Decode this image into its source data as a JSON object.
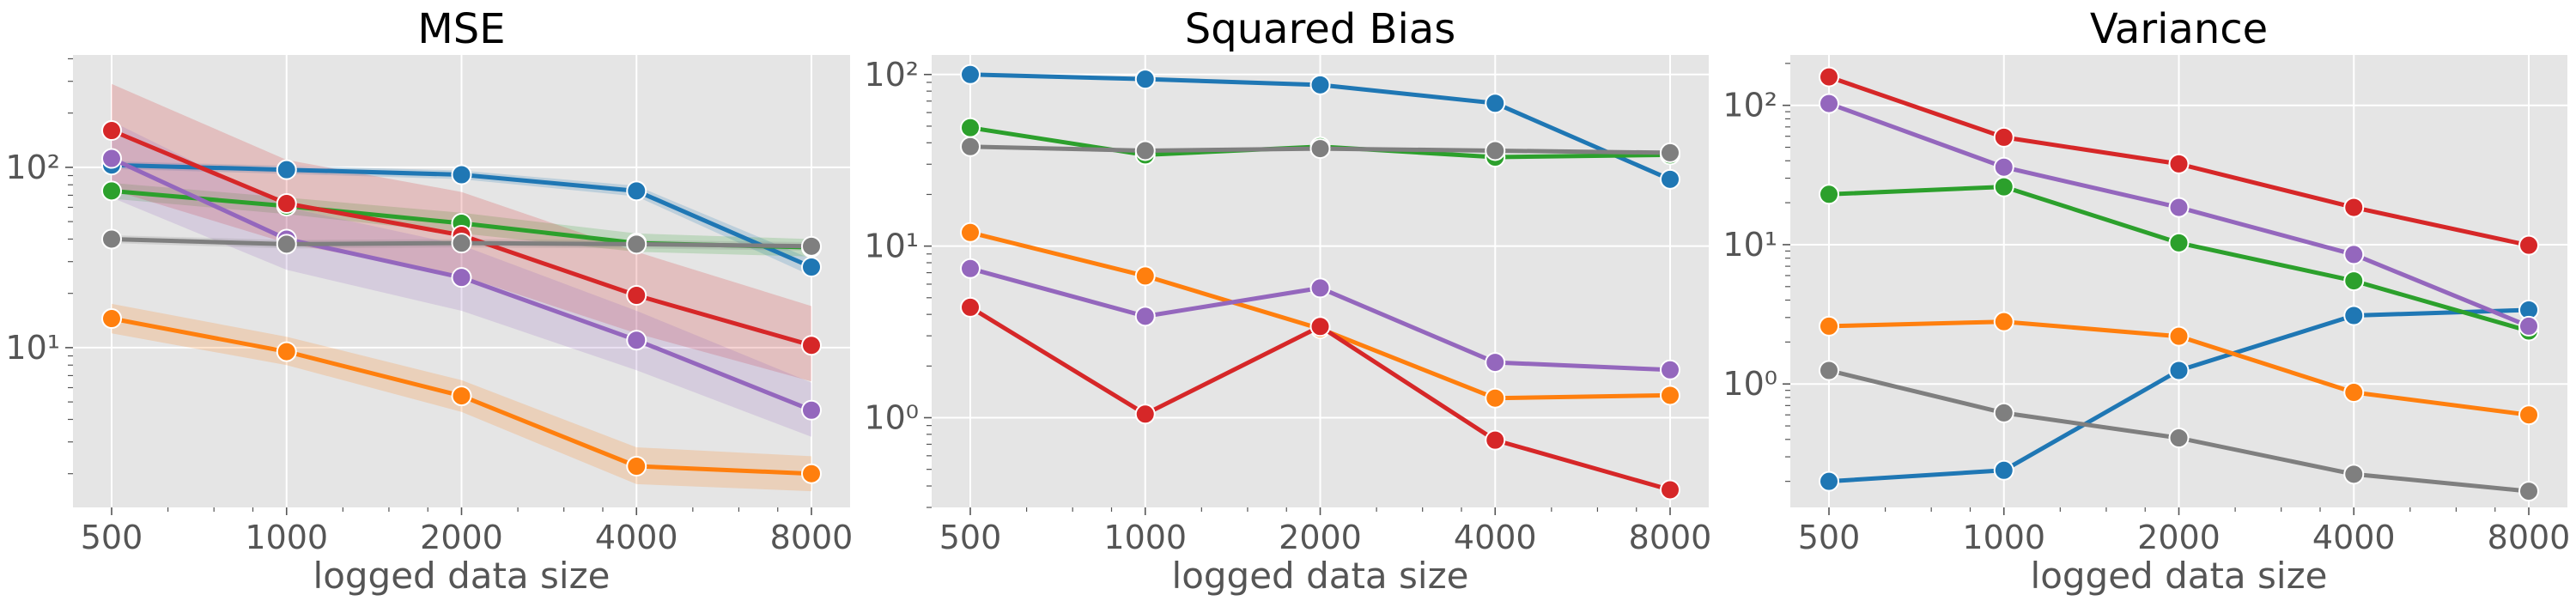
{
  "chart_data": [
    {
      "type": "line",
      "title": "MSE",
      "xlabel": "logged data size",
      "ylabel": "",
      "x": [
        500,
        1000,
        2000,
        4000,
        8000
      ],
      "xticklabels": [
        "500",
        "1000",
        "2000",
        "4000",
        "8000"
      ],
      "xscale": "log2",
      "yscale": "log",
      "ylim": [
        1.3,
        420
      ],
      "ytick_values": [
        10,
        100
      ],
      "yticklabels": [
        "10¹",
        "10²"
      ],
      "grid": true,
      "series": [
        {
          "color": "#1f77b4",
          "values": [
            103,
            97,
            91,
            74,
            28
          ],
          "band": [
            [
              98,
              108
            ],
            [
              92,
              102
            ],
            [
              86,
              96
            ],
            [
              69,
              79
            ],
            [
              25,
              31
            ]
          ]
        },
        {
          "color": "#ff7f0e",
          "values": [
            14.5,
            9.5,
            5.4,
            2.2,
            2.0
          ],
          "band": [
            [
              12,
              17.5
            ],
            [
              8,
              11.5
            ],
            [
              4.4,
              6.6
            ],
            [
              1.75,
              2.8
            ],
            [
              1.6,
              2.5
            ]
          ]
        },
        {
          "color": "#2ca02c",
          "values": [
            74,
            61,
            49,
            38,
            36
          ],
          "band": [
            [
              67,
              82
            ],
            [
              55,
              68
            ],
            [
              43,
              56
            ],
            [
              34,
              43
            ],
            [
              32,
              40
            ]
          ]
        },
        {
          "color": "#d62728",
          "values": [
            160,
            63,
            42,
            19.5,
            10.3
          ],
          "band": [
            [
              75,
              290
            ],
            [
              38,
              110
            ],
            [
              25,
              73
            ],
            [
              12,
              34
            ],
            [
              6.5,
              17
            ]
          ]
        },
        {
          "color": "#9467bd",
          "values": [
            112,
            40,
            24.5,
            11,
            4.5
          ],
          "band": [
            [
              68,
              180
            ],
            [
              27,
              60
            ],
            [
              16,
              37
            ],
            [
              7.5,
              16
            ],
            [
              3.2,
              6.4
            ]
          ]
        },
        {
          "color": "#7f7f7f",
          "values": [
            40,
            37.5,
            38,
            37.5,
            36.5
          ],
          "band": [
            [
              38,
              42
            ],
            [
              35.5,
              39.5
            ],
            [
              36,
              40
            ],
            [
              35.5,
              39.5
            ],
            [
              34.5,
              38.5
            ]
          ]
        }
      ]
    },
    {
      "type": "line",
      "title": "Squared Bias",
      "xlabel": "logged data size",
      "ylabel": "",
      "x": [
        500,
        1000,
        2000,
        4000,
        8000
      ],
      "xticklabels": [
        "500",
        "1000",
        "2000",
        "4000",
        "8000"
      ],
      "xscale": "log2",
      "yscale": "log",
      "ylim": [
        0.3,
        130
      ],
      "ytick_values": [
        1,
        10,
        100
      ],
      "yticklabels": [
        "10⁰",
        "10¹",
        "10²"
      ],
      "grid": true,
      "series": [
        {
          "color": "#1f77b4",
          "values": [
            100,
            94,
            87,
            68,
            24.5
          ]
        },
        {
          "color": "#ff7f0e",
          "values": [
            12,
            6.7,
            3.3,
            1.3,
            1.35
          ]
        },
        {
          "color": "#2ca02c",
          "values": [
            49,
            34,
            38,
            33,
            34
          ]
        },
        {
          "color": "#d62728",
          "values": [
            4.4,
            1.05,
            3.4,
            0.74,
            0.38
          ]
        },
        {
          "color": "#9467bd",
          "values": [
            7.4,
            3.9,
            5.7,
            2.1,
            1.9
          ]
        },
        {
          "color": "#7f7f7f",
          "values": [
            38,
            36,
            37,
            36,
            35
          ]
        }
      ]
    },
    {
      "type": "line",
      "title": "Variance",
      "xlabel": "logged data size",
      "ylabel": "",
      "x": [
        500,
        1000,
        2000,
        4000,
        8000
      ],
      "xticklabels": [
        "500",
        "1000",
        "2000",
        "4000",
        "8000"
      ],
      "xscale": "log2",
      "yscale": "log",
      "ylim": [
        0.13,
        230
      ],
      "ytick_values": [
        1,
        10,
        100
      ],
      "yticklabels": [
        "10⁰",
        "10¹",
        "10²"
      ],
      "grid": true,
      "series": [
        {
          "color": "#1f77b4",
          "values": [
            0.2,
            0.24,
            1.25,
            3.1,
            3.4
          ]
        },
        {
          "color": "#ff7f0e",
          "values": [
            2.6,
            2.8,
            2.2,
            0.87,
            0.6
          ]
        },
        {
          "color": "#2ca02c",
          "values": [
            23,
            26,
            10.3,
            5.5,
            2.4
          ]
        },
        {
          "color": "#d62728",
          "values": [
            160,
            59,
            38,
            18.5,
            9.9
          ]
        },
        {
          "color": "#9467bd",
          "values": [
            103,
            36,
            18.5,
            8.5,
            2.6
          ]
        },
        {
          "color": "#7f7f7f",
          "values": [
            1.25,
            0.62,
            0.41,
            0.225,
            0.17
          ]
        }
      ]
    }
  ]
}
